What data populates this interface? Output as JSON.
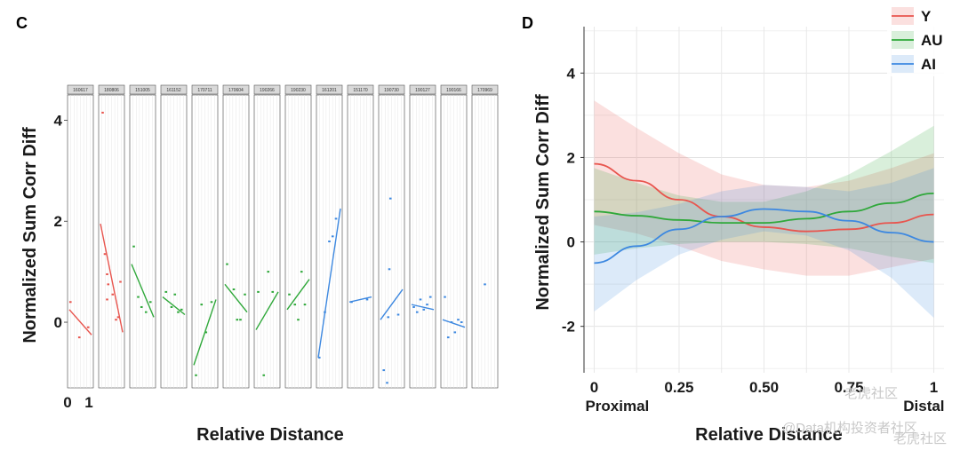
{
  "watermark": {
    "line1": "老虎社区",
    "line2": "@Data机构投资者社区",
    "line3": "老虎社区"
  },
  "colors": {
    "Y": "#e8554e",
    "AU": "#2fa83a",
    "AI": "#3d88e0"
  },
  "chart_data": [
    {
      "panel_label": "C",
      "type": "line",
      "ylabel": "Normalized Sum Corr Diff",
      "xlabel": "Relative Distance",
      "ylim": [
        -1.3,
        4.5
      ],
      "yticks": [
        "0",
        "2",
        "4"
      ],
      "yticks_values": [
        0,
        2,
        4
      ],
      "xticks": [
        "0",
        "1"
      ],
      "facets": [
        {
          "id": "160617",
          "group": "Y",
          "line": [
            [
              0,
              0.25
            ],
            [
              1,
              -0.25
            ]
          ],
          "points": [
            [
              0.05,
              0.4
            ],
            [
              0.45,
              -0.3
            ],
            [
              0.85,
              -0.1
            ]
          ]
        },
        {
          "id": "180806",
          "group": "Y",
          "line": [
            [
              0,
              1.95
            ],
            [
              1,
              -0.2
            ]
          ],
          "points": [
            [
              0.1,
              4.15
            ],
            [
              0.2,
              1.35
            ],
            [
              0.3,
              0.95
            ],
            [
              0.35,
              0.75
            ],
            [
              0.3,
              0.45
            ],
            [
              0.55,
              0.55
            ],
            [
              0.7,
              0.05
            ],
            [
              0.8,
              0.1
            ],
            [
              0.9,
              0.8
            ]
          ]
        },
        {
          "id": "151005",
          "group": "AU",
          "line": [
            [
              0,
              1.15
            ],
            [
              1,
              0.1
            ]
          ],
          "points": [
            [
              0.1,
              1.5
            ],
            [
              0.3,
              0.5
            ],
            [
              0.45,
              0.3
            ],
            [
              0.65,
              0.2
            ],
            [
              0.85,
              0.4
            ]
          ]
        },
        {
          "id": "161152",
          "group": "AU",
          "line": [
            [
              0,
              0.5
            ],
            [
              1,
              0.15
            ]
          ],
          "points": [
            [
              0.15,
              0.6
            ],
            [
              0.4,
              0.3
            ],
            [
              0.55,
              0.55
            ],
            [
              0.7,
              0.2
            ],
            [
              0.85,
              0.25
            ]
          ]
        },
        {
          "id": "170711",
          "group": "AU",
          "line": [
            [
              0,
              -0.85
            ],
            [
              1,
              0.45
            ]
          ],
          "points": [
            [
              0.1,
              -1.05
            ],
            [
              0.35,
              0.35
            ],
            [
              0.55,
              -0.2
            ],
            [
              0.8,
              0.4
            ]
          ]
        },
        {
          "id": "170604",
          "group": "AU",
          "line": [
            [
              0,
              0.75
            ],
            [
              1,
              0.2
            ]
          ],
          "points": [
            [
              0.1,
              1.15
            ],
            [
              0.4,
              0.65
            ],
            [
              0.55,
              0.05
            ],
            [
              0.7,
              0.05
            ],
            [
              0.9,
              0.55
            ]
          ]
        },
        {
          "id": "190266",
          "group": "AU",
          "line": [
            [
              0,
              -0.15
            ],
            [
              1,
              0.6
            ]
          ],
          "points": [
            [
              0.1,
              0.6
            ],
            [
              0.35,
              -1.05
            ],
            [
              0.55,
              1.0
            ],
            [
              0.75,
              0.6
            ]
          ]
        },
        {
          "id": "190230",
          "group": "AU",
          "line": [
            [
              0,
              0.25
            ],
            [
              1,
              0.85
            ]
          ],
          "points": [
            [
              0.1,
              0.55
            ],
            [
              0.35,
              0.35
            ],
            [
              0.5,
              0.05
            ],
            [
              0.65,
              1.0
            ],
            [
              0.8,
              0.35
            ]
          ]
        },
        {
          "id": "161201",
          "group": "AI",
          "line": [
            [
              0,
              -0.7
            ],
            [
              1,
              2.25
            ]
          ],
          "points": [
            [
              0.05,
              -0.7
            ],
            [
              0.3,
              0.2
            ],
            [
              0.5,
              1.6
            ],
            [
              0.65,
              1.7
            ],
            [
              0.8,
              2.05
            ]
          ]
        },
        {
          "id": "151170",
          "group": "AI",
          "line": [
            [
              0,
              0.4
            ],
            [
              1,
              0.5
            ]
          ],
          "points": [
            [
              0.1,
              0.4
            ],
            [
              0.8,
              0.45
            ]
          ]
        },
        {
          "id": "190730",
          "group": "AI",
          "line": [
            [
              0,
              0.05
            ],
            [
              1,
              0.65
            ]
          ],
          "points": [
            [
              0.15,
              -0.95
            ],
            [
              0.3,
              -1.2
            ],
            [
              0.35,
              0.1
            ],
            [
              0.4,
              1.05
            ],
            [
              0.45,
              2.45
            ],
            [
              0.8,
              0.15
            ]
          ]
        },
        {
          "id": "190127",
          "group": "AI",
          "line": [
            [
              0,
              0.35
            ],
            [
              1,
              0.25
            ]
          ],
          "points": [
            [
              0.1,
              0.3
            ],
            [
              0.25,
              0.2
            ],
            [
              0.4,
              0.45
            ],
            [
              0.55,
              0.25
            ],
            [
              0.7,
              0.35
            ],
            [
              0.85,
              0.5
            ]
          ]
        },
        {
          "id": "190166",
          "group": "AI",
          "line": [
            [
              0,
              0.05
            ],
            [
              1,
              -0.1
            ]
          ],
          "points": [
            [
              0.1,
              0.5
            ],
            [
              0.25,
              -0.3
            ],
            [
              0.4,
              0.0
            ],
            [
              0.55,
              -0.2
            ],
            [
              0.7,
              0.05
            ],
            [
              0.85,
              0.0
            ]
          ]
        },
        {
          "id": "170969",
          "group": "AI",
          "line": null,
          "points": [
            [
              0.5,
              0.75
            ]
          ]
        }
      ]
    },
    {
      "panel_label": "D",
      "type": "line",
      "ylabel": "Normalized Sum Corr Diff",
      "xlabel": "Relative Distance",
      "xlim": [
        -0.03,
        1.03
      ],
      "ylim": [
        -3.1,
        5.1
      ],
      "xticks": [
        "0",
        "0.25",
        "0.50",
        "0.75",
        "1"
      ],
      "xticks_values": [
        0,
        0.25,
        0.5,
        0.75,
        1
      ],
      "yticks": [
        "-2",
        "0",
        "2",
        "4"
      ],
      "yticks_values": [
        -2,
        0,
        2,
        4
      ],
      "x_end_labels": [
        "Proximal",
        "Distal"
      ],
      "grid": true,
      "legend_position": "top-right",
      "series": [
        {
          "name": "Y",
          "x": [
            0,
            0.125,
            0.25,
            0.375,
            0.5,
            0.625,
            0.75,
            0.875,
            1
          ],
          "y": [
            1.85,
            1.45,
            1.0,
            0.6,
            0.35,
            0.25,
            0.3,
            0.45,
            0.65
          ],
          "lower": [
            0.4,
            0.2,
            -0.1,
            -0.45,
            -0.65,
            -0.8,
            -0.8,
            -0.6,
            -0.4
          ],
          "upper": [
            3.35,
            2.7,
            2.1,
            1.6,
            1.35,
            1.3,
            1.45,
            1.75,
            2.1
          ]
        },
        {
          "name": "AU",
          "x": [
            0,
            0.125,
            0.25,
            0.375,
            0.5,
            0.625,
            0.75,
            0.875,
            1
          ],
          "y": [
            0.72,
            0.62,
            0.52,
            0.45,
            0.45,
            0.55,
            0.72,
            0.92,
            1.15
          ],
          "lower": [
            -0.3,
            -0.15,
            -0.05,
            0.0,
            0.0,
            -0.05,
            -0.15,
            -0.35,
            -0.5
          ],
          "upper": [
            1.75,
            1.4,
            1.1,
            0.95,
            0.95,
            1.2,
            1.6,
            2.15,
            2.75
          ]
        },
        {
          "name": "AI",
          "x": [
            0,
            0.125,
            0.25,
            0.375,
            0.5,
            0.625,
            0.75,
            0.875,
            1
          ],
          "y": [
            -0.5,
            -0.1,
            0.3,
            0.6,
            0.78,
            0.72,
            0.5,
            0.22,
            0.0
          ],
          "lower": [
            -1.65,
            -0.9,
            -0.3,
            0.05,
            0.25,
            0.15,
            -0.2,
            -0.85,
            -1.8
          ],
          "upper": [
            0.6,
            0.7,
            0.9,
            1.2,
            1.35,
            1.3,
            1.2,
            1.4,
            1.75
          ]
        }
      ]
    }
  ]
}
